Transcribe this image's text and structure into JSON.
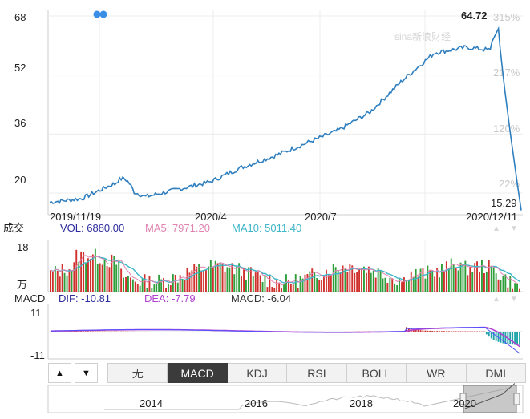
{
  "chart_data": [
    {
      "type": "line",
      "ylim": [
        15,
        68
      ],
      "yticks": [
        "68",
        "52",
        "36",
        "20"
      ],
      "right_ticks": [
        "315%",
        "217%",
        "120%",
        "22%"
      ],
      "x_labels": [
        "2019/11/19",
        "2020/4",
        "2020/7",
        "2020/12/11"
      ],
      "x": [
        "2019/11/19",
        "2019/12/15",
        "2020/1/10",
        "2020/2/5",
        "2020/3/2",
        "2020/3/28",
        "2020/4/23",
        "2020/5/19",
        "2020/6/14",
        "2020/7/10",
        "2020/8/5",
        "2020/8/31",
        "2020/9/26",
        "2020/10/22",
        "2020/11/17",
        "2020/12/11"
      ],
      "values": [
        17.5,
        18.5,
        22.5,
        19.0,
        21.0,
        23.0,
        27.0,
        30.0,
        33.5,
        37.0,
        42.0,
        50.5,
        58.0,
        59.5,
        58.5,
        15.3
      ],
      "max_label": "64.72",
      "min_label": "15.29",
      "watermark": "sina新浪财经"
    },
    {
      "type": "bar",
      "name": "成交",
      "unit": "万",
      "ylim": [
        0,
        18
      ],
      "ytick": "18",
      "legend": {
        "vol": "VOL: 6880.00",
        "ma5": "MA5: 7971.20",
        "ma10": "MA10: 5011.40"
      }
    },
    {
      "type": "bar",
      "name": "MACD",
      "ylim": [
        -11,
        11
      ],
      "yticks": [
        "11",
        "-11"
      ],
      "legend": {
        "dif": "DIF: -10.81",
        "dea": "DEA: -7.79",
        "macd": "MACD: -6.04"
      }
    }
  ],
  "colors": {
    "price": "#2f7fbf",
    "up": "#d0312d",
    "down": "#2e9e3a",
    "ma5": "#e083b0",
    "ma10": "#3cb6c8",
    "dif": "#2c2cff",
    "dea": "#b040d0",
    "macd": "#222222",
    "axis": "#cccccc",
    "grid": "#ececec",
    "pct": "#c9c9c9"
  },
  "tabs": {
    "up_icon": "▲",
    "down_icon": "▼",
    "items": [
      "无",
      "MACD",
      "KDJ",
      "RSI",
      "BOLL",
      "WR",
      "DMI"
    ],
    "active": "MACD"
  },
  "navigator": {
    "years": [
      "2014",
      "2016",
      "2018",
      "2020"
    ]
  }
}
